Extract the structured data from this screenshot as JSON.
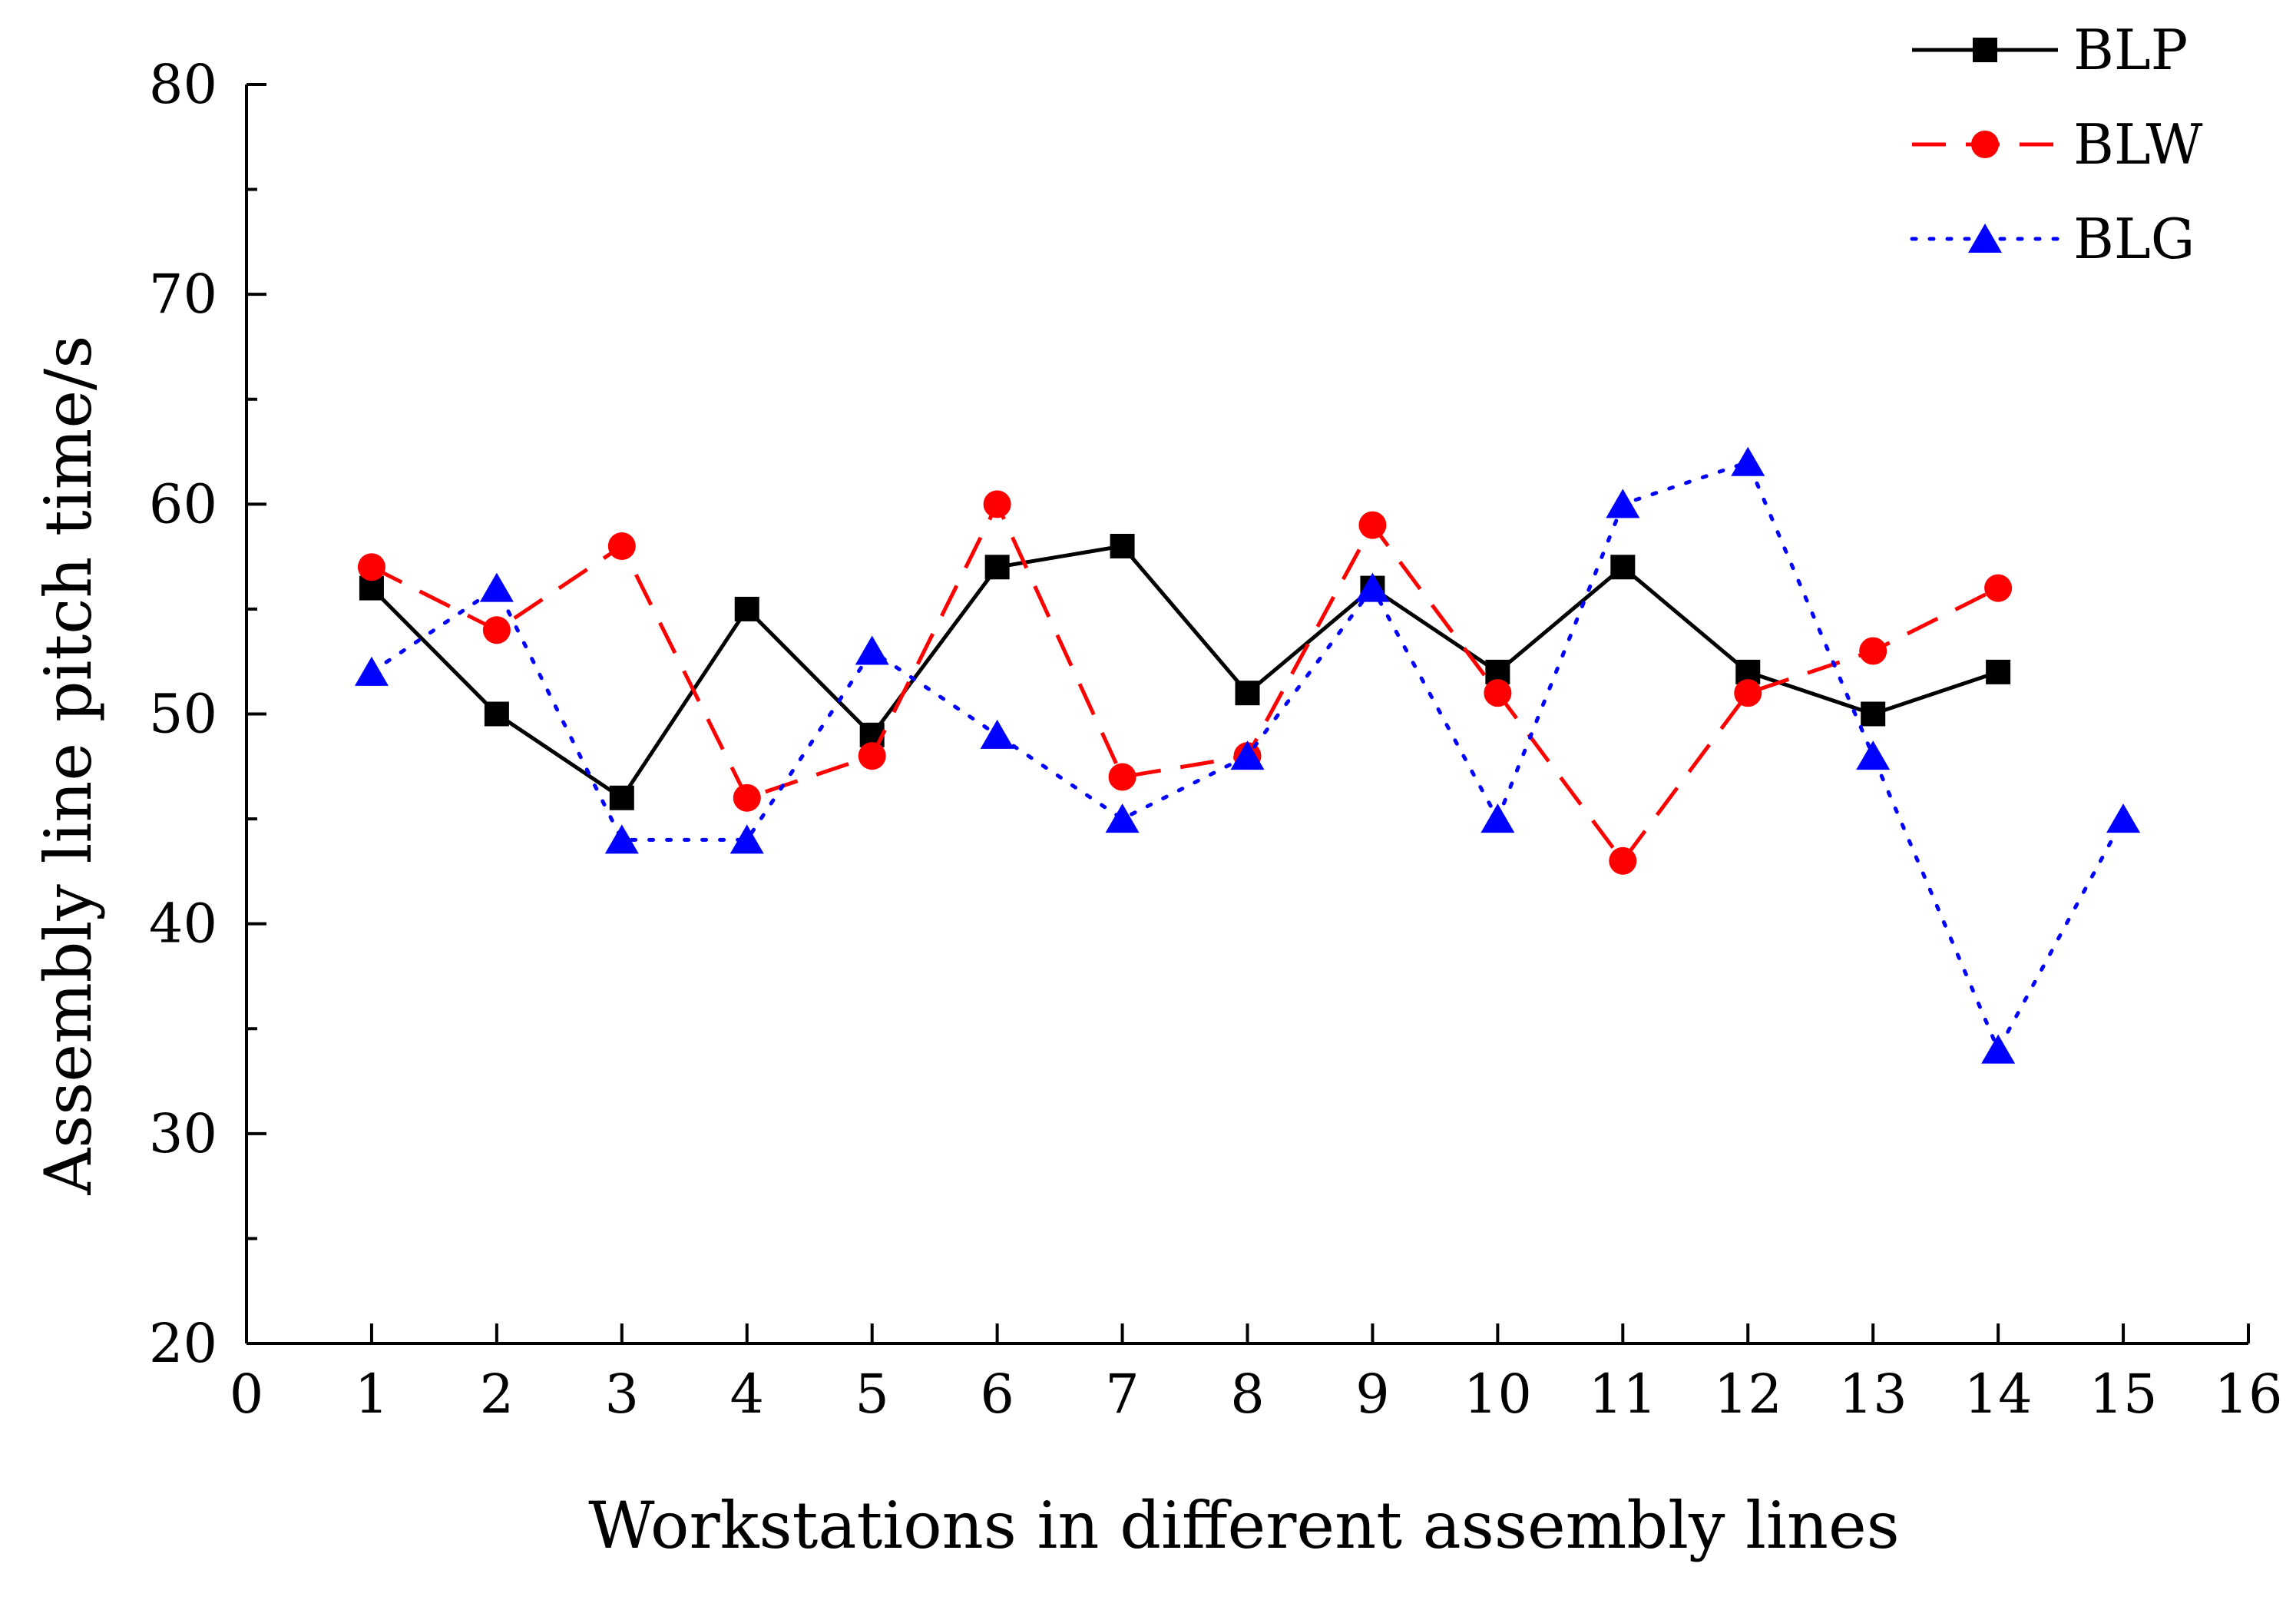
{
  "chart_data": {
    "type": "line",
    "title": "",
    "xlabel": "Workstations in different assembly lines",
    "ylabel": "Assembly line pitch time/s",
    "xlim": [
      0,
      16
    ],
    "ylim": [
      20,
      80
    ],
    "xticks": [
      0,
      1,
      2,
      3,
      4,
      5,
      6,
      7,
      8,
      9,
      10,
      11,
      12,
      13,
      14,
      15,
      16
    ],
    "yticks": [
      20,
      30,
      40,
      50,
      60,
      70,
      80
    ],
    "xtick_labels": [
      "0",
      "1",
      "2",
      "3",
      "4",
      "5",
      "6",
      "7",
      "8",
      "9",
      "10",
      "11",
      "12",
      "13",
      "14",
      "15",
      "16"
    ],
    "ytick_labels": [
      "20",
      "30",
      "40",
      "50",
      "60",
      "70",
      "80"
    ],
    "grid": false,
    "legend_position": "top-right",
    "series": [
      {
        "name": "BLP",
        "color": "#000000",
        "line_style": "solid",
        "marker": "square",
        "x": [
          1,
          2,
          3,
          4,
          5,
          6,
          7,
          8,
          9,
          10,
          11,
          12,
          13,
          14
        ],
        "values": [
          56,
          50,
          46,
          55,
          49,
          57,
          58,
          51,
          56,
          52,
          57,
          52,
          50,
          52
        ]
      },
      {
        "name": "BLW",
        "color": "#ff0000",
        "line_style": "dashed",
        "marker": "circle",
        "x": [
          1,
          2,
          3,
          4,
          5,
          6,
          7,
          8,
          9,
          10,
          11,
          12,
          13,
          14
        ],
        "values": [
          57,
          54,
          58,
          46,
          48,
          60,
          47,
          48,
          59,
          51,
          43,
          51,
          53,
          56
        ]
      },
      {
        "name": "BLG",
        "color": "#0000ff",
        "line_style": "dotted",
        "marker": "triangle",
        "x": [
          1,
          2,
          3,
          4,
          5,
          6,
          7,
          8,
          9,
          10,
          11,
          12,
          13,
          14,
          15
        ],
        "values": [
          52,
          56,
          44,
          44,
          53,
          49,
          45,
          48,
          56,
          45,
          60,
          62,
          48,
          34,
          45
        ]
      }
    ]
  }
}
